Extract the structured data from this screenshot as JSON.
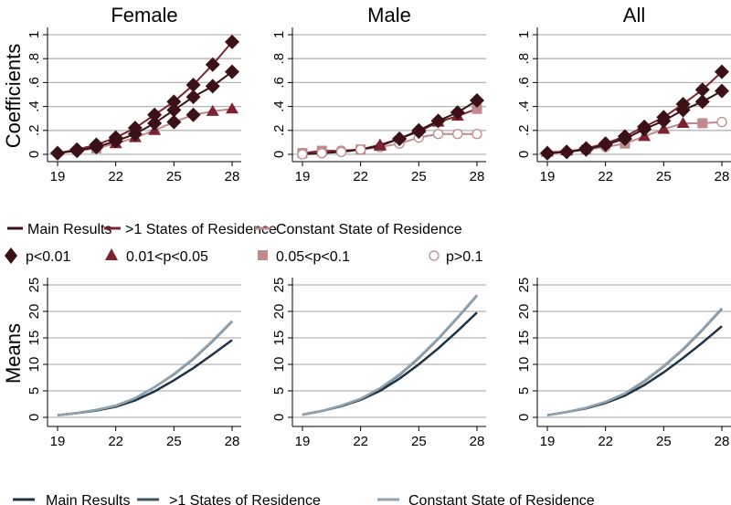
{
  "chart_data": [
    {
      "type": "line",
      "title": "Female",
      "ylabel": "Coefficients",
      "ylim": [
        0,
        1
      ],
      "yticks": [
        "0",
        ".2",
        ".4",
        ".6",
        ".8",
        "1"
      ],
      "ytick_values": [
        0,
        0.2,
        0.4,
        0.6,
        0.8,
        1
      ],
      "xticks": [
        19,
        22,
        25,
        28
      ],
      "x": [
        19,
        20,
        21,
        22,
        23,
        24,
        25,
        26,
        27,
        28
      ],
      "series": [
        {
          "name": "Main Results",
          "values": [
            0.01,
            0.03,
            0.06,
            0.11,
            0.17,
            0.26,
            0.37,
            0.48,
            0.57,
            0.69
          ],
          "markers": [
            "D",
            "D",
            "D",
            "D",
            "D",
            "D",
            "D",
            "D",
            "D",
            "D"
          ]
        },
        {
          "name": ">1 States of Residence",
          "values": [
            0.01,
            0.04,
            0.08,
            0.14,
            0.22,
            0.33,
            0.44,
            0.58,
            0.75,
            0.94
          ],
          "markers": [
            "D",
            "D",
            "D",
            "D",
            "D",
            "D",
            "D",
            "D",
            "D",
            "D"
          ]
        },
        {
          "name": "Constant State of Residence",
          "values": [
            0.01,
            0.03,
            0.05,
            0.09,
            0.14,
            0.2,
            0.27,
            0.33,
            0.36,
            0.38
          ],
          "markers": [
            "D",
            "D",
            "S",
            "T",
            "T",
            "T",
            "D",
            "D",
            "T",
            "T"
          ]
        }
      ]
    },
    {
      "type": "line",
      "title": "Male",
      "ylim": [
        0,
        1
      ],
      "yticks": [
        "0",
        ".2",
        ".4",
        ".6",
        ".8",
        "1"
      ],
      "ytick_values": [
        0,
        0.2,
        0.4,
        0.6,
        0.8,
        1
      ],
      "xticks": [
        19,
        22,
        25,
        28
      ],
      "x": [
        19,
        20,
        21,
        22,
        23,
        24,
        25,
        26,
        27,
        28
      ],
      "series": [
        {
          "name": "Main Results",
          "values": [
            0.0,
            0.01,
            0.02,
            0.04,
            0.07,
            0.13,
            0.2,
            0.28,
            0.35,
            0.45
          ],
          "markers": [
            "O",
            "O",
            "O",
            "O",
            "T",
            "D",
            "D",
            "D",
            "D",
            "D"
          ]
        },
        {
          "name": ">1 States of Residence",
          "values": [
            0.01,
            0.03,
            0.03,
            0.04,
            0.08,
            0.13,
            0.19,
            0.27,
            0.32,
            0.38
          ],
          "markers": [
            "S",
            "S",
            "O",
            "S",
            "T",
            "D",
            "D",
            "T",
            "T",
            "S"
          ]
        },
        {
          "name": "Constant State of Residence",
          "values": [
            0.01,
            0.01,
            0.03,
            0.04,
            0.06,
            0.09,
            0.14,
            0.17,
            0.17,
            0.17
          ],
          "markers": [
            "O",
            "O",
            "O",
            "O",
            "O",
            "O",
            "O",
            "O",
            "O",
            "O"
          ]
        }
      ]
    },
    {
      "type": "line",
      "title": "All",
      "ylim": [
        0,
        1
      ],
      "yticks": [
        "0",
        ".2",
        ".4",
        ".6",
        ".8",
        "1"
      ],
      "ytick_values": [
        0,
        0.2,
        0.4,
        0.6,
        0.8,
        1
      ],
      "xticks": [
        19,
        22,
        25,
        28
      ],
      "x": [
        19,
        20,
        21,
        22,
        23,
        24,
        25,
        26,
        27,
        28
      ],
      "series": [
        {
          "name": "Main Results",
          "values": [
            0.01,
            0.02,
            0.04,
            0.08,
            0.13,
            0.21,
            0.28,
            0.37,
            0.44,
            0.53
          ],
          "markers": [
            "D",
            "D",
            "D",
            "D",
            "D",
            "D",
            "D",
            "D",
            "D",
            "D"
          ]
        },
        {
          "name": ">1 States of Residence",
          "values": [
            0.01,
            0.02,
            0.05,
            0.09,
            0.15,
            0.23,
            0.31,
            0.42,
            0.54,
            0.69
          ],
          "markers": [
            "D",
            "D",
            "D",
            "D",
            "D",
            "D",
            "D",
            "D",
            "D",
            "D"
          ]
        },
        {
          "name": "Constant State of Residence",
          "values": [
            0.02,
            0.03,
            0.04,
            0.06,
            0.09,
            0.15,
            0.21,
            0.26,
            0.26,
            0.27
          ],
          "markers": [
            "T",
            "T",
            "S",
            "O",
            "S",
            "T",
            "T",
            "T",
            "S",
            "O"
          ]
        }
      ]
    },
    {
      "type": "line",
      "ylabel": "Means",
      "ylim": [
        0,
        25
      ],
      "yticks": [
        "0",
        "5",
        "10",
        "15",
        "20",
        "25"
      ],
      "ytick_values": [
        0,
        5,
        10,
        15,
        20,
        25
      ],
      "xticks": [
        19,
        22,
        25,
        28
      ],
      "x": [
        19,
        20,
        21,
        22,
        23,
        24,
        25,
        26,
        27,
        28
      ],
      "series": [
        {
          "name": "Main Results",
          "values": [
            0.4,
            0.8,
            1.3,
            2.0,
            3.2,
            4.9,
            7.0,
            9.3,
            11.9,
            14.6
          ]
        },
        {
          "name": ">1 States of Residence",
          "values": [
            0.4,
            0.8,
            1.4,
            2.2,
            3.6,
            5.7,
            8.1,
            11.0,
            14.4,
            18.1
          ]
        },
        {
          "name": "Constant State of Residence",
          "values": [
            0.4,
            0.8,
            1.4,
            2.2,
            3.6,
            5.7,
            8.2,
            11.1,
            14.5,
            18.2
          ]
        }
      ]
    },
    {
      "type": "line",
      "ylim": [
        0,
        25
      ],
      "yticks": [
        "0",
        "5",
        "10",
        "15",
        "20",
        "25"
      ],
      "ytick_values": [
        0,
        5,
        10,
        15,
        20,
        25
      ],
      "xticks": [
        19,
        22,
        25,
        28
      ],
      "x": [
        19,
        20,
        21,
        22,
        23,
        24,
        25,
        26,
        27,
        28
      ],
      "series": [
        {
          "name": "Main Results",
          "values": [
            0.5,
            1.2,
            2.1,
            3.3,
            5.0,
            7.3,
            10.0,
            13.0,
            16.3,
            19.8
          ]
        },
        {
          "name": ">1 States of Residence",
          "values": [
            0.5,
            1.2,
            2.2,
            3.5,
            5.4,
            8.0,
            11.2,
            14.8,
            18.8,
            23.0
          ]
        },
        {
          "name": "Constant State of Residence",
          "values": [
            0.5,
            1.2,
            2.2,
            3.5,
            5.5,
            8.1,
            11.3,
            14.9,
            18.9,
            23.1
          ]
        }
      ]
    },
    {
      "type": "line",
      "ylim": [
        0,
        25
      ],
      "yticks": [
        "0",
        "5",
        "10",
        "15",
        "20",
        "25"
      ],
      "ytick_values": [
        0,
        5,
        10,
        15,
        20,
        25
      ],
      "xticks": [
        19,
        22,
        25,
        28
      ],
      "x": [
        19,
        20,
        21,
        22,
        23,
        24,
        25,
        26,
        27,
        28
      ],
      "series": [
        {
          "name": "Main Results",
          "values": [
            0.4,
            1.0,
            1.7,
            2.7,
            4.1,
            6.1,
            8.5,
            11.2,
            14.1,
            17.2
          ]
        },
        {
          "name": ">1 States of Residence",
          "values": [
            0.4,
            1.0,
            1.8,
            2.9,
            4.5,
            6.8,
            9.6,
            12.8,
            16.5,
            20.5
          ]
        },
        {
          "name": "Constant State of Residence",
          "values": [
            0.4,
            1.0,
            1.8,
            2.9,
            4.5,
            6.9,
            9.7,
            12.9,
            16.6,
            20.6
          ]
        }
      ]
    }
  ],
  "colors": {
    "top": [
      "#3b1117",
      "#7b2430",
      "#c08a8c"
    ],
    "bottom": [
      "#1f3347",
      "#3e5568",
      "#8fa3b1"
    ],
    "grid": "#b4b4b4"
  },
  "legend_top": {
    "lines": [
      "Main Results",
      ">1 States of Residence",
      "Constant State of Residence"
    ],
    "markers": [
      "p<0.01",
      "0.01<p<0.05",
      "0.05<p<0.1",
      "p>0.1"
    ]
  },
  "legend_bottom": {
    "lines": [
      "Main Results",
      ">1 States of Residence",
      "Constant State of Residence"
    ]
  }
}
